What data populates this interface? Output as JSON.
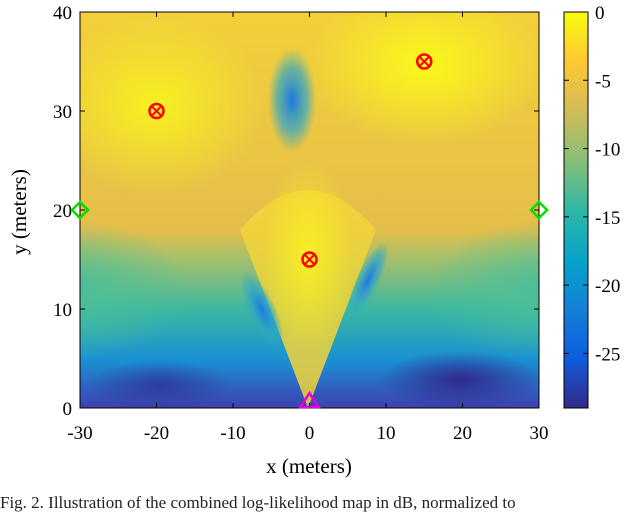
{
  "chart_data": {
    "type": "heatmap",
    "title": "",
    "xlabel": "x (meters)",
    "ylabel": "y (meters)",
    "xlim": [
      -30,
      30
    ],
    "ylim": [
      0,
      40
    ],
    "xticks": [
      -30,
      -20,
      -10,
      0,
      10,
      20,
      30
    ],
    "yticks": [
      0,
      10,
      20,
      30,
      40
    ],
    "colorbar": {
      "range": [
        -29,
        0
      ],
      "ticks": [
        0,
        -5,
        -10,
        -15,
        -20,
        -25
      ],
      "colormap": "parula",
      "colors": [
        "#352a87",
        "#0f5cdd",
        "#1481d6",
        "#06a4ca",
        "#2eb7a4",
        "#87bf77",
        "#d1bb59",
        "#fec832",
        "#f9fb0e"
      ]
    },
    "markers": {
      "targets": {
        "symbol": "circle-x",
        "color": "#ff0000",
        "points": [
          {
            "x": -20,
            "y": 30
          },
          {
            "x": 15,
            "y": 35
          },
          {
            "x": 0,
            "y": 15
          }
        ]
      },
      "anchors": {
        "symbol": "diamond",
        "color": "#00e000",
        "points": [
          {
            "x": -30,
            "y": 20
          },
          {
            "x": 30,
            "y": 20
          }
        ]
      },
      "source": {
        "symbol": "triangle",
        "color": "#e000e0",
        "points": [
          {
            "x": 0,
            "y": 0
          }
        ]
      }
    }
  },
  "caption": "Fig. 2.  Illustration of the combined log-likelihood map in dB, normalized to"
}
